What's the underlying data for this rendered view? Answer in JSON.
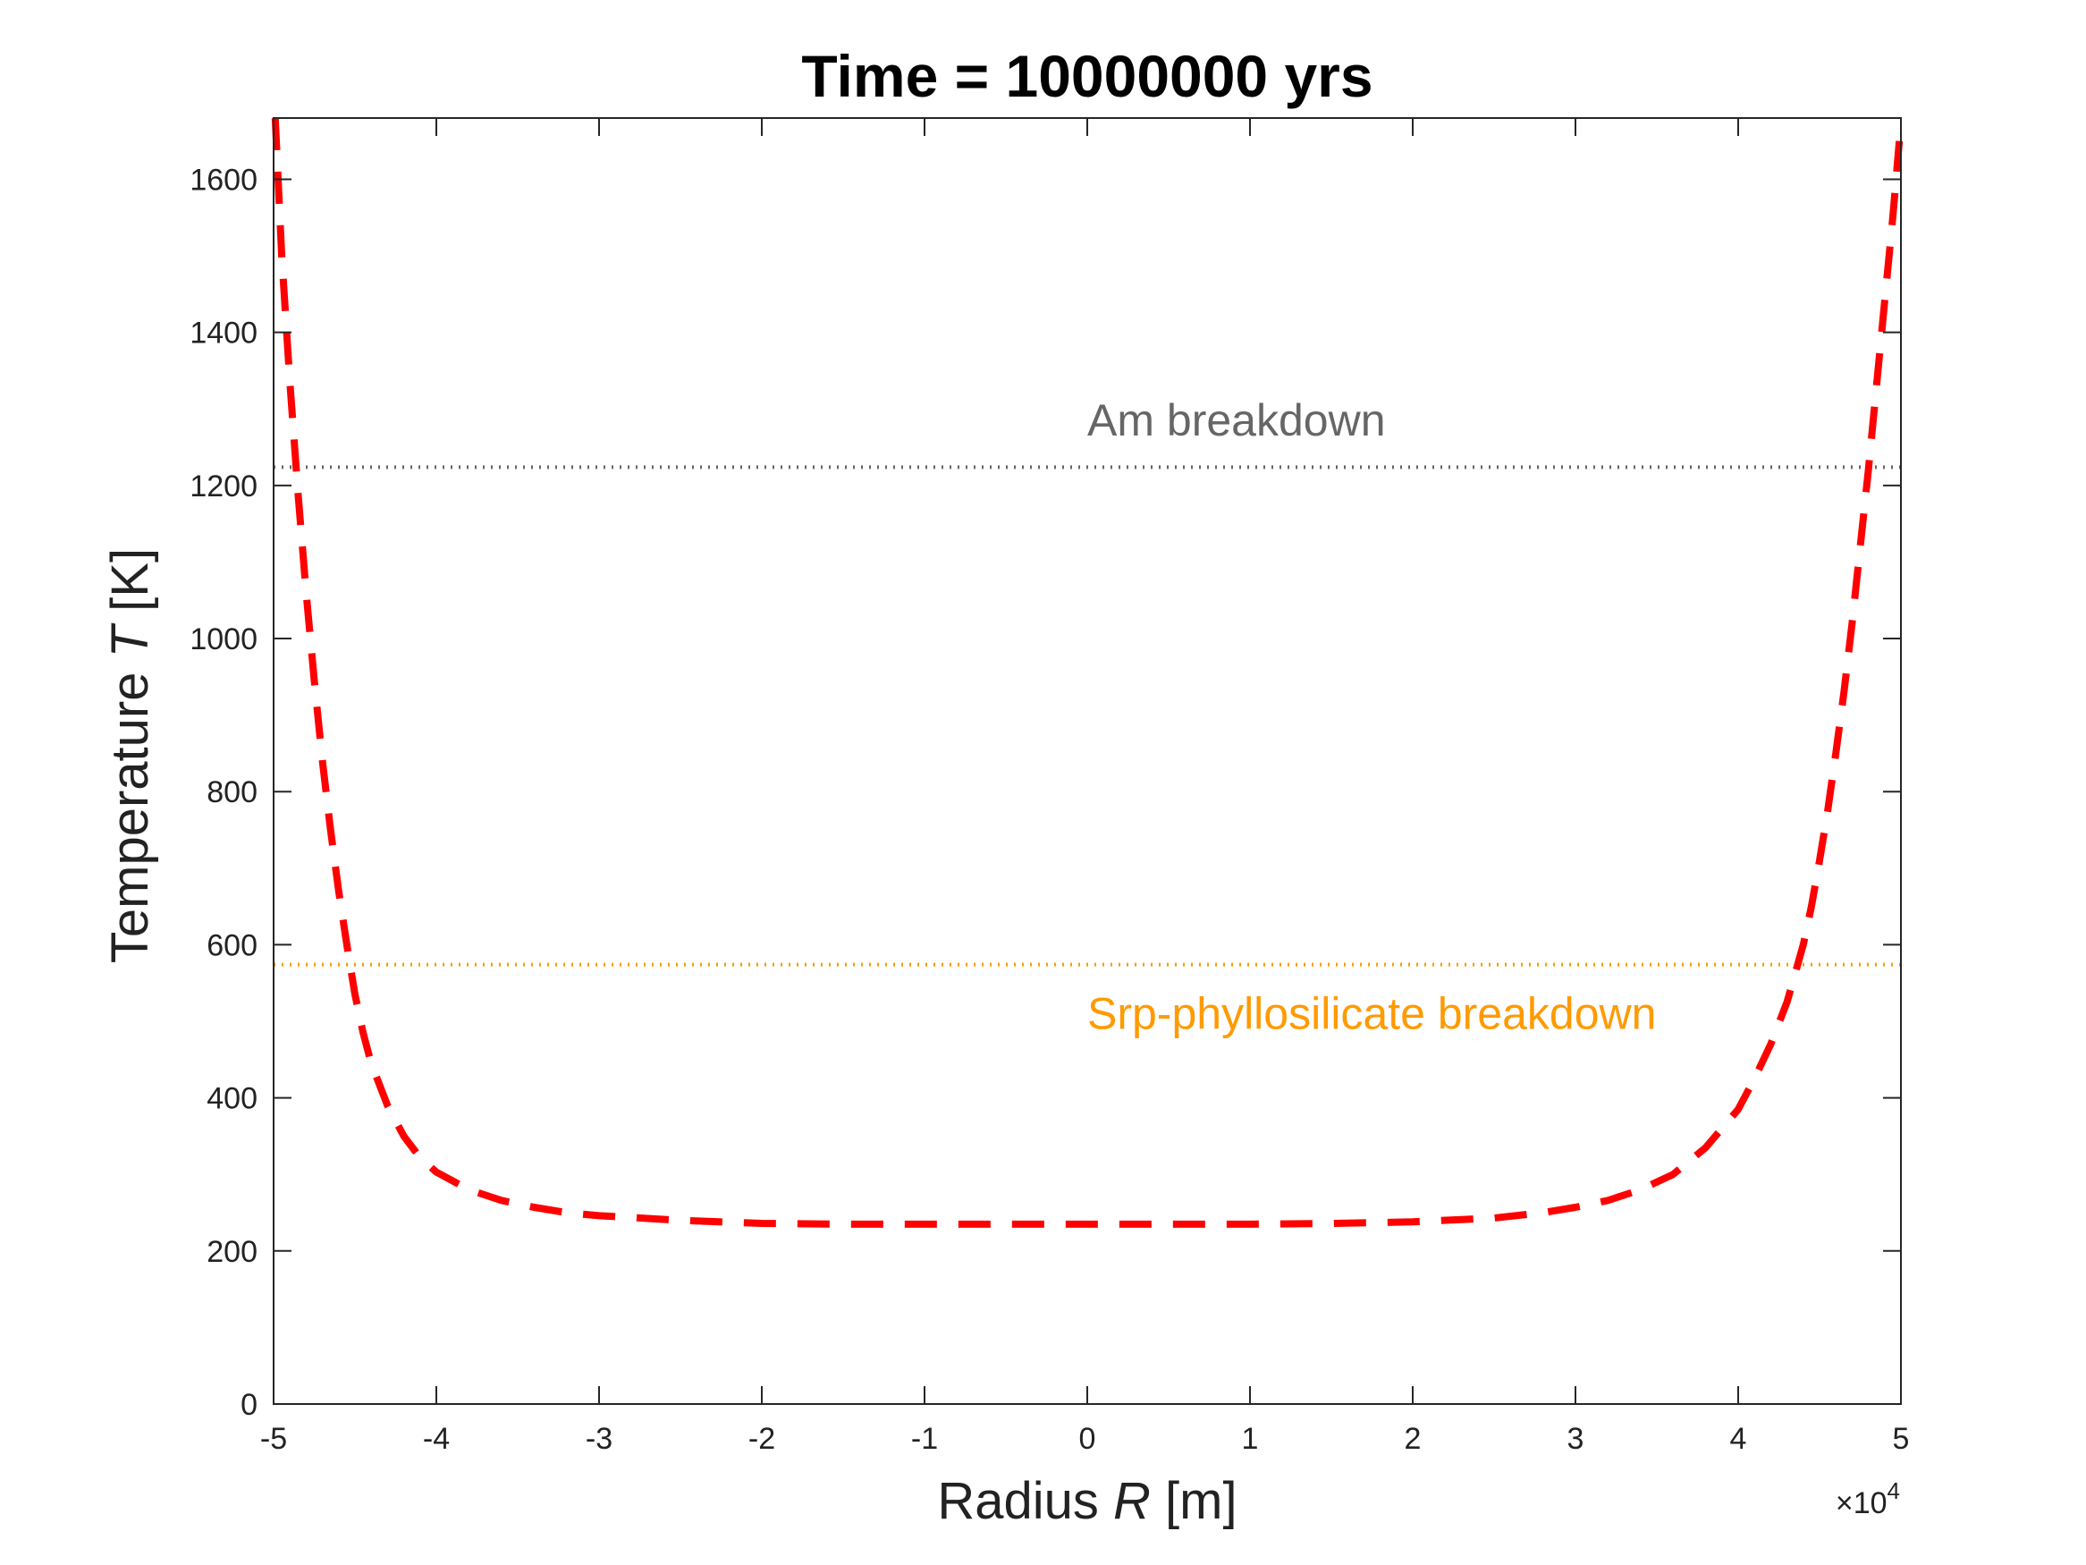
{
  "chart_data": {
    "type": "line",
    "title": "Time = 10000000 yrs",
    "xlabel": {
      "prefix": "Radius ",
      "var": "R",
      "suffix": " [m]"
    },
    "ylabel": {
      "prefix": "Temperature ",
      "var": "T",
      "suffix": " [K]"
    },
    "x_exponent": {
      "base": "×10",
      "power": "4"
    },
    "xlim": [
      -5,
      5
    ],
    "ylim": [
      0,
      1680
    ],
    "xticks": [
      -5,
      -4,
      -3,
      -2,
      -1,
      0,
      1,
      2,
      3,
      4,
      5
    ],
    "xtick_labels": [
      "-5",
      "-4",
      "-3",
      "-2",
      "-1",
      "0",
      "1",
      "2",
      "3",
      "4",
      "5"
    ],
    "yticks": [
      0,
      200,
      400,
      600,
      800,
      1000,
      1200,
      1400,
      1600
    ],
    "ytick_labels": [
      "0",
      "200",
      "400",
      "600",
      "800",
      "1000",
      "1200",
      "1400",
      "1600"
    ],
    "grid": false,
    "series": [
      {
        "style": "dashed",
        "color": "#ff0000",
        "x": [
          -4.99,
          -4.95,
          -4.9,
          -4.85,
          -4.8,
          -4.75,
          -4.7,
          -4.65,
          -4.6,
          -4.55,
          -4.5,
          -4.45,
          -4.4,
          -4.3,
          -4.2,
          -4.1,
          -4.0,
          -3.8,
          -3.6,
          -3.4,
          -3.2,
          -3.0,
          -2.5,
          -2.0,
          -1.5,
          -1.0,
          -0.5,
          0,
          0.5,
          1.0,
          1.5,
          2.0,
          2.5,
          2.8,
          3.0,
          3.2,
          3.4,
          3.6,
          3.8,
          4.0,
          4.1,
          4.2,
          4.3,
          4.4,
          4.45,
          4.5,
          4.55,
          4.6,
          4.65,
          4.7,
          4.75,
          4.8,
          4.85,
          4.9,
          4.95,
          4.99
        ],
        "y": [
          1680,
          1500,
          1335,
          1190,
          1060,
          945,
          840,
          750,
          670,
          600,
          535,
          485,
          445,
          390,
          350,
          322,
          303,
          280,
          266,
          257,
          250,
          246,
          240,
          236,
          235,
          235,
          235,
          235,
          235,
          235,
          236,
          238,
          243,
          250,
          257,
          266,
          280,
          300,
          335,
          385,
          425,
          470,
          525,
          600,
          650,
          710,
          775,
          850,
          930,
          1020,
          1120,
          1220,
          1330,
          1440,
          1550,
          1650
        ]
      }
    ],
    "reference_lines": [
      {
        "name": "Am breakdown",
        "y": 1224,
        "color": "#666666",
        "label_x": 0,
        "label_y": 1265
      },
      {
        "name": "Srp-phyllosilicate breakdown",
        "y": 574,
        "color": "#ff9a00",
        "label_x": 0,
        "label_y": 490
      }
    ]
  }
}
